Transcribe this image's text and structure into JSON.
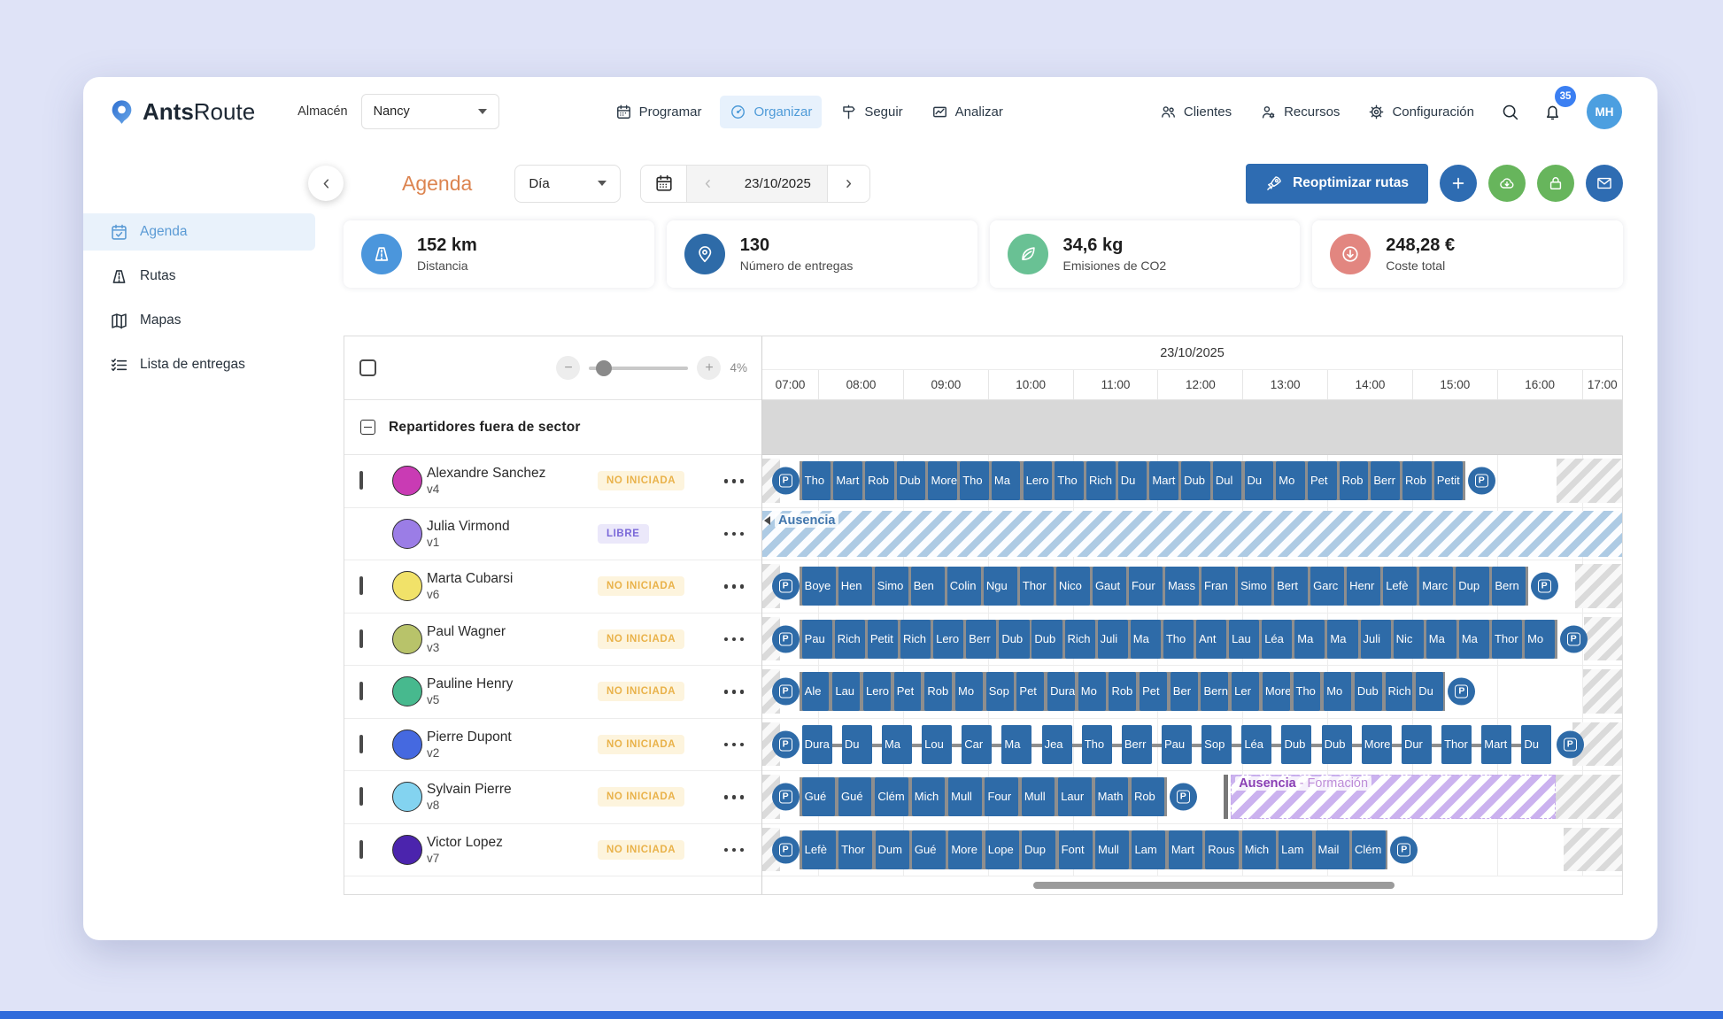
{
  "navbar": {
    "logo_bold": "Ants",
    "logo_regular": "Route",
    "warehouse_label": "Almacén",
    "warehouse_value": "Nancy",
    "menu": [
      {
        "label": "Programar",
        "icon": "calendar",
        "active": false
      },
      {
        "label": "Organizar",
        "icon": "gauge",
        "active": true
      },
      {
        "label": "Seguir",
        "icon": "signpost",
        "active": false
      },
      {
        "label": "Analizar",
        "icon": "chart",
        "active": false
      }
    ],
    "right_menu": [
      {
        "label": "Clientes",
        "icon": "users"
      },
      {
        "label": "Recursos",
        "icon": "user-gear"
      },
      {
        "label": "Configuración",
        "icon": "gear"
      }
    ],
    "notification_count": "35",
    "avatar_initials": "MH"
  },
  "sidebar": {
    "items": [
      {
        "label": "Agenda",
        "icon": "calendar-check",
        "active": true
      },
      {
        "label": "Rutas",
        "icon": "road",
        "active": false
      },
      {
        "label": "Mapas",
        "icon": "map",
        "active": false
      },
      {
        "label": "Lista de entregas",
        "icon": "checklist",
        "active": false
      }
    ]
  },
  "toolbar": {
    "title": "Agenda",
    "period_value": "Día",
    "date_value": "23/10/2025",
    "reoptimize_label": "Reoptimizar rutas"
  },
  "stats": [
    {
      "value": "152 km",
      "label": "Distancia",
      "icon": "road",
      "color": "#4b96dc"
    },
    {
      "value": "130",
      "label": "Número de entregas",
      "icon": "pin",
      "color": "#2e6ba8"
    },
    {
      "value": "34,6 kg",
      "label": "Emisiones de CO2",
      "icon": "leaf",
      "color": "#69c194"
    },
    {
      "value": "248,28 €",
      "label": "Coste total",
      "icon": "arrow-down-circle",
      "color": "#e28680"
    }
  ],
  "gantt": {
    "zoom_label": "4%",
    "date": "23/10/2025",
    "hours": [
      "07:00",
      "08:00",
      "09:00",
      "10:00",
      "11:00",
      "12:00",
      "13:00",
      "14:00",
      "15:00",
      "16:00",
      "17:00"
    ],
    "section": "Repartidores fuera de sector",
    "depot_label": "P",
    "rows": [
      {
        "name": "Alexandre Sanchez",
        "vehicle": "v4",
        "color": "#c93bb4",
        "status": "NO INICIADA",
        "status_type": "pending",
        "checkbox": true,
        "track": {
          "type": "tasks",
          "start": 4.6,
          "end": 81.5,
          "gap": 0.32,
          "sparse": false,
          "right_hatch": 92.4,
          "tasks": [
            "Tho",
            "Mart",
            "Rob",
            "Dub",
            "More",
            "Tho",
            "Ma",
            "Lero",
            "Tho",
            "Rich",
            "Du",
            "Mart",
            "Dub",
            "Dul",
            "Du",
            "Mo",
            "Pet",
            "Rob",
            "Berr",
            "Rob",
            "Petit"
          ]
        }
      },
      {
        "name": "Julia Virmond",
        "vehicle": "v1",
        "color": "#9b7de6",
        "status": "LIBRE",
        "status_type": "free",
        "checkbox": false,
        "track": {
          "type": "absence_full",
          "label": "Ausencia"
        }
      },
      {
        "name": "Marta Cubarsi",
        "vehicle": "v6",
        "color": "#f1e269",
        "status": "NO INICIADA",
        "status_type": "pending",
        "checkbox": true,
        "track": {
          "type": "tasks",
          "start": 4.6,
          "end": 88.8,
          "gap": 0.32,
          "sparse": false,
          "right_hatch": 94.5,
          "tasks": [
            "Boye",
            "Hen",
            "Simo",
            "Ben",
            "Colin",
            "Ngu",
            "Thor",
            "Nico",
            "Gaut",
            "Four",
            "Mass",
            "Fran",
            "Simo",
            "Bert",
            "Garc",
            "Henr",
            "Lefè",
            "Marc",
            "Dup",
            "Bern"
          ]
        }
      },
      {
        "name": "Paul Wagner",
        "vehicle": "v3",
        "color": "#b8c36a",
        "status": "NO INICIADA",
        "status_type": "pending",
        "checkbox": true,
        "track": {
          "type": "tasks",
          "start": 4.6,
          "end": 92.2,
          "gap": 0.3,
          "sparse": false,
          "right_hatch": 95.6,
          "tasks": [
            "Pau",
            "Rich",
            "Petit",
            "Rich",
            "Lero",
            "Berr",
            "Dub",
            "Dub",
            "Rich",
            "Juli",
            "Ma",
            "Tho",
            "Ant",
            "Lau",
            "Léa",
            "Ma",
            "Ma",
            "Juli",
            "Nic",
            "Ma",
            "Ma",
            "Thor",
            "Mo"
          ]
        }
      },
      {
        "name": "Pauline Henry",
        "vehicle": "v5",
        "color": "#47b98e",
        "status": "NO INICIADA",
        "status_type": "pending",
        "checkbox": true,
        "track": {
          "type": "tasks",
          "start": 4.6,
          "end": 79.2,
          "gap": 0.4,
          "sparse": false,
          "right_hatch": 95.5,
          "tasks": [
            "Ale",
            "Lau",
            "Lero",
            "Pet",
            "Rob",
            "Mo",
            "Sop",
            "Pet",
            "Dura",
            "Mo",
            "Rob",
            "Pet",
            "Ber",
            "Bern",
            "Ler",
            "More",
            "Tho",
            "Mo",
            "Dub",
            "Rich",
            "Du"
          ]
        }
      },
      {
        "name": "Pierre Dupont",
        "vehicle": "v2",
        "color": "#4569e0",
        "status": "NO INICIADA",
        "status_type": "pending",
        "checkbox": true,
        "track": {
          "type": "tasks",
          "start": 4.6,
          "end": 91.8,
          "gap": 1.15,
          "sparse": true,
          "right_hatch": 94.2,
          "tasks": [
            "Dura",
            "Du",
            "Ma",
            "Lou",
            "Car",
            "Ma",
            "Jea",
            "Tho",
            "Berr",
            "Pau",
            "Sop",
            "Léa",
            "Dub",
            "Dub",
            "More",
            "Dur",
            "Thor",
            "Mart",
            "Du"
          ]
        }
      },
      {
        "name": "Sylvain Pierre",
        "vehicle": "v8",
        "color": "#83d3f0",
        "status": "NO INICIADA",
        "status_type": "pending",
        "checkbox": true,
        "track": {
          "type": "tasks",
          "start": 4.6,
          "end": 46.8,
          "gap": 0.4,
          "sparse": false,
          "right_hatch": 92.3,
          "tasks": [
            "Gué",
            "Gué",
            "Clém",
            "Mich",
            "Mull",
            "Four",
            "Mull",
            "Laur",
            "Math",
            "Rob"
          ],
          "absence": {
            "start": 54.5,
            "end": 92.3,
            "label": "Ausencia",
            "sublabel": " - Formación"
          }
        }
      },
      {
        "name": "Victor Lopez",
        "vehicle": "v7",
        "color": "#4b24ad",
        "status": "NO INICIADA",
        "status_type": "pending",
        "checkbox": true,
        "track": {
          "type": "tasks",
          "start": 4.6,
          "end": 72.5,
          "gap": 0.35,
          "sparse": false,
          "right_hatch": 93.2,
          "tasks": [
            "Lefè",
            "Thor",
            "Dum",
            "Gué",
            "More",
            "Lope",
            "Dup",
            "Font",
            "Mull",
            "Lam",
            "Mart",
            "Rous",
            "Mich",
            "Lam",
            "Mail",
            "Clém"
          ]
        }
      }
    ]
  }
}
